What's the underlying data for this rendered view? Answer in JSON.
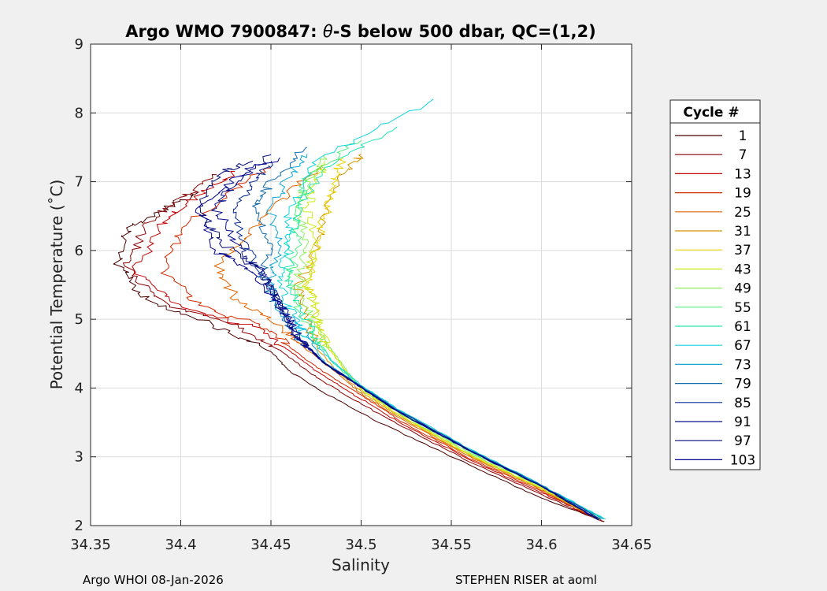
{
  "chart_data": {
    "type": "line",
    "title": "Argo WMO 7900847: θ-S below 500 dbar,  QC=(1,2)",
    "title_prefix": "Argo WMO 7900847: ",
    "title_theta": "θ",
    "title_suffix": "-S below 500 dbar,  QC=(1,2)",
    "xlabel": "Salinity",
    "ylabel": "Potential Temperature (˚C)",
    "xlim": [
      34.35,
      34.65
    ],
    "ylim": [
      2,
      9
    ],
    "xticks": [
      "34.35",
      "34.4",
      "34.45",
      "34.5",
      "34.55",
      "34.6",
      "34.65"
    ],
    "yticks": [
      "2",
      "3",
      "4",
      "5",
      "6",
      "7",
      "8",
      "9"
    ],
    "grid": true,
    "legend": {
      "title": "Cycle #",
      "placement": "right-outside",
      "entries": [
        "1",
        "7",
        "13",
        "19",
        "25",
        "31",
        "37",
        "43",
        "49",
        "55",
        "61",
        "67",
        "73",
        "79",
        "85",
        "91",
        "97",
        "103"
      ],
      "colors": [
        "#4a0000",
        "#8a0000",
        "#c40000",
        "#d42a00",
        "#e06400",
        "#d89400",
        "#e8d400",
        "#c8ec1a",
        "#8ef05a",
        "#52f080",
        "#22e6b0",
        "#10d4e0",
        "#10a8d8",
        "#106aac",
        "#0a2e96",
        "#06108a",
        "#020a78",
        "#000090"
      ]
    },
    "series": [
      {
        "cycle": 1,
        "color": "#4a0000",
        "points": [
          [
            34.635,
            2.06
          ],
          [
            34.6,
            2.4
          ],
          [
            34.56,
            2.88
          ],
          [
            34.51,
            3.5
          ],
          [
            34.48,
            3.92
          ],
          [
            34.46,
            4.25
          ],
          [
            34.45,
            4.53
          ],
          [
            34.42,
            4.9
          ],
          [
            34.38,
            5.3
          ],
          [
            34.365,
            5.8
          ],
          [
            34.37,
            6.3
          ],
          [
            34.39,
            6.6
          ],
          [
            34.41,
            6.85
          ]
        ]
      },
      {
        "cycle": 7,
        "color": "#8a0000",
        "points": [
          [
            34.634,
            2.06
          ],
          [
            34.6,
            2.45
          ],
          [
            34.56,
            2.93
          ],
          [
            34.52,
            3.48
          ],
          [
            34.49,
            3.92
          ],
          [
            34.47,
            4.25
          ],
          [
            34.455,
            4.55
          ],
          [
            34.43,
            4.9
          ],
          [
            34.39,
            5.25
          ],
          [
            34.37,
            5.75
          ],
          [
            34.38,
            6.35
          ],
          [
            34.4,
            6.75
          ],
          [
            34.42,
            7.1
          ]
        ]
      },
      {
        "cycle": 13,
        "color": "#c40000",
        "points": [
          [
            34.633,
            2.07
          ],
          [
            34.6,
            2.48
          ],
          [
            34.56,
            2.96
          ],
          [
            34.52,
            3.52
          ],
          [
            34.495,
            3.92
          ],
          [
            34.475,
            4.25
          ],
          [
            34.46,
            4.55
          ],
          [
            34.44,
            4.88
          ],
          [
            34.4,
            5.2
          ],
          [
            34.375,
            5.7
          ],
          [
            34.39,
            6.4
          ],
          [
            34.41,
            6.8
          ],
          [
            34.43,
            7.15
          ]
        ]
      },
      {
        "cycle": 19,
        "color": "#d42a00",
        "points": [
          [
            34.633,
            2.07
          ],
          [
            34.6,
            2.5
          ],
          [
            34.56,
            2.98
          ],
          [
            34.52,
            3.55
          ],
          [
            34.5,
            3.9
          ],
          [
            34.48,
            4.22
          ],
          [
            34.465,
            4.5
          ],
          [
            34.45,
            4.85
          ],
          [
            34.41,
            5.2
          ],
          [
            34.39,
            5.7
          ],
          [
            34.4,
            6.3
          ],
          [
            34.43,
            6.9
          ],
          [
            34.45,
            7.2
          ]
        ]
      },
      {
        "cycle": 25,
        "color": "#e06400",
        "points": [
          [
            34.632,
            2.08
          ],
          [
            34.6,
            2.52
          ],
          [
            34.56,
            3.0
          ],
          [
            34.52,
            3.58
          ],
          [
            34.5,
            3.92
          ],
          [
            34.485,
            4.25
          ],
          [
            34.47,
            4.55
          ],
          [
            34.455,
            4.9
          ],
          [
            34.43,
            5.3
          ],
          [
            34.42,
            5.8
          ],
          [
            34.44,
            6.3
          ],
          [
            34.46,
            6.85
          ],
          [
            34.48,
            7.25
          ]
        ]
      },
      {
        "cycle": 31,
        "color": "#d89400",
        "points": [
          [
            34.632,
            2.08
          ],
          [
            34.6,
            2.53
          ],
          [
            34.56,
            3.02
          ],
          [
            34.52,
            3.6
          ],
          [
            34.5,
            3.95
          ],
          [
            34.485,
            4.28
          ],
          [
            34.475,
            4.6
          ],
          [
            34.47,
            5.0
          ],
          [
            34.465,
            5.5
          ],
          [
            34.475,
            6.0
          ],
          [
            34.48,
            6.6
          ],
          [
            34.49,
            7.1
          ],
          [
            34.5,
            7.4
          ]
        ]
      },
      {
        "cycle": 37,
        "color": "#e8d400",
        "points": [
          [
            34.632,
            2.09
          ],
          [
            34.6,
            2.54
          ],
          [
            34.56,
            3.03
          ],
          [
            34.52,
            3.62
          ],
          [
            34.5,
            3.98
          ],
          [
            34.49,
            4.3
          ],
          [
            34.48,
            4.65
          ],
          [
            34.475,
            5.05
          ],
          [
            34.47,
            5.5
          ],
          [
            34.475,
            6.0
          ],
          [
            34.48,
            6.5
          ],
          [
            34.485,
            7.0
          ],
          [
            34.49,
            7.35
          ]
        ]
      },
      {
        "cycle": 43,
        "color": "#c8ec1a",
        "points": [
          [
            34.632,
            2.09
          ],
          [
            34.6,
            2.55
          ],
          [
            34.56,
            3.04
          ],
          [
            34.52,
            3.63
          ],
          [
            34.5,
            3.98
          ],
          [
            34.49,
            4.3
          ],
          [
            34.48,
            4.68
          ],
          [
            34.475,
            5.1
          ],
          [
            34.47,
            5.6
          ],
          [
            34.475,
            6.1
          ],
          [
            34.47,
            6.6
          ],
          [
            34.475,
            7.0
          ],
          [
            34.48,
            7.3
          ]
        ]
      },
      {
        "cycle": 49,
        "color": "#8ef05a",
        "points": [
          [
            34.633,
            2.09
          ],
          [
            34.6,
            2.56
          ],
          [
            34.56,
            3.06
          ],
          [
            34.52,
            3.65
          ],
          [
            34.5,
            4.0
          ],
          [
            34.49,
            4.32
          ],
          [
            34.48,
            4.7
          ],
          [
            34.47,
            5.15
          ],
          [
            34.465,
            5.6
          ],
          [
            34.47,
            6.1
          ],
          [
            34.465,
            6.6
          ],
          [
            34.47,
            7.0
          ],
          [
            34.48,
            7.4
          ]
        ]
      },
      {
        "cycle": 55,
        "color": "#52f080",
        "points": [
          [
            34.634,
            2.1
          ],
          [
            34.6,
            2.57
          ],
          [
            34.56,
            3.08
          ],
          [
            34.52,
            3.67
          ],
          [
            34.5,
            4.02
          ],
          [
            34.485,
            4.35
          ],
          [
            34.475,
            4.72
          ],
          [
            34.465,
            5.15
          ],
          [
            34.46,
            5.6
          ],
          [
            34.465,
            6.1
          ],
          [
            34.465,
            6.6
          ],
          [
            34.47,
            7.1
          ],
          [
            34.5,
            7.6
          ]
        ]
      },
      {
        "cycle": 61,
        "color": "#22e6b0",
        "points": [
          [
            34.635,
            2.1
          ],
          [
            34.6,
            2.58
          ],
          [
            34.56,
            3.1
          ],
          [
            34.52,
            3.68
          ],
          [
            34.5,
            4.03
          ],
          [
            34.485,
            4.36
          ],
          [
            34.475,
            4.73
          ],
          [
            34.465,
            5.15
          ],
          [
            34.46,
            5.6
          ],
          [
            34.46,
            6.1
          ],
          [
            34.465,
            6.6
          ],
          [
            34.48,
            7.2
          ],
          [
            34.52,
            7.8
          ]
        ]
      },
      {
        "cycle": 67,
        "color": "#10d4e0",
        "points": [
          [
            34.635,
            2.1
          ],
          [
            34.6,
            2.59
          ],
          [
            34.56,
            3.12
          ],
          [
            34.52,
            3.7
          ],
          [
            34.5,
            4.04
          ],
          [
            34.485,
            4.37
          ],
          [
            34.47,
            4.74
          ],
          [
            34.46,
            5.15
          ],
          [
            34.455,
            5.6
          ],
          [
            34.46,
            6.1
          ],
          [
            34.46,
            6.6
          ],
          [
            34.475,
            7.3
          ],
          [
            34.54,
            8.2
          ]
        ]
      },
      {
        "cycle": 73,
        "color": "#10a8d8",
        "points": [
          [
            34.634,
            2.1
          ],
          [
            34.6,
            2.59
          ],
          [
            34.56,
            3.11
          ],
          [
            34.52,
            3.69
          ],
          [
            34.5,
            4.03
          ],
          [
            34.48,
            4.37
          ],
          [
            34.47,
            4.74
          ],
          [
            34.455,
            5.15
          ],
          [
            34.45,
            5.6
          ],
          [
            34.455,
            6.1
          ],
          [
            34.45,
            6.6
          ],
          [
            34.46,
            7.1
          ],
          [
            34.47,
            7.4
          ]
        ]
      },
      {
        "cycle": 79,
        "color": "#106aac",
        "points": [
          [
            34.633,
            2.09
          ],
          [
            34.6,
            2.58
          ],
          [
            34.56,
            3.1
          ],
          [
            34.52,
            3.68
          ],
          [
            34.5,
            4.02
          ],
          [
            34.48,
            4.36
          ],
          [
            34.465,
            4.72
          ],
          [
            34.455,
            5.15
          ],
          [
            34.445,
            5.6
          ],
          [
            34.45,
            6.1
          ],
          [
            34.44,
            6.6
          ],
          [
            34.45,
            7.0
          ],
          [
            34.47,
            7.5
          ]
        ]
      },
      {
        "cycle": 85,
        "color": "#0a2e96",
        "points": [
          [
            34.633,
            2.09
          ],
          [
            34.6,
            2.58
          ],
          [
            34.56,
            3.1
          ],
          [
            34.52,
            3.68
          ],
          [
            34.5,
            4.02
          ],
          [
            34.48,
            4.36
          ],
          [
            34.465,
            4.74
          ],
          [
            34.455,
            5.2
          ],
          [
            34.445,
            5.65
          ],
          [
            34.435,
            6.1
          ],
          [
            34.43,
            6.6
          ],
          [
            34.44,
            7.0
          ],
          [
            34.45,
            7.3
          ]
        ]
      },
      {
        "cycle": 91,
        "color": "#06108a",
        "points": [
          [
            34.632,
            2.08
          ],
          [
            34.6,
            2.57
          ],
          [
            34.56,
            3.09
          ],
          [
            34.52,
            3.67
          ],
          [
            34.5,
            4.02
          ],
          [
            34.48,
            4.36
          ],
          [
            34.465,
            4.74
          ],
          [
            34.455,
            5.2
          ],
          [
            34.445,
            5.7
          ],
          [
            34.43,
            6.1
          ],
          [
            34.42,
            6.6
          ],
          [
            34.43,
            7.0
          ],
          [
            34.45,
            7.4
          ]
        ]
      },
      {
        "cycle": 97,
        "color": "#020a78",
        "points": [
          [
            34.632,
            2.08
          ],
          [
            34.6,
            2.57
          ],
          [
            34.56,
            3.09
          ],
          [
            34.52,
            3.66
          ],
          [
            34.5,
            4.01
          ],
          [
            34.48,
            4.35
          ],
          [
            34.465,
            4.73
          ],
          [
            34.455,
            5.2
          ],
          [
            34.445,
            5.7
          ],
          [
            34.425,
            6.05
          ],
          [
            34.41,
            6.6
          ],
          [
            34.42,
            7.1
          ],
          [
            34.44,
            7.3
          ]
        ]
      },
      {
        "cycle": 103,
        "color": "#000090",
        "points": [
          [
            34.632,
            2.08
          ],
          [
            34.6,
            2.57
          ],
          [
            34.56,
            3.09
          ],
          [
            34.52,
            3.66
          ],
          [
            34.5,
            4.01
          ],
          [
            34.48,
            4.35
          ],
          [
            34.465,
            4.72
          ],
          [
            34.455,
            5.2
          ],
          [
            34.44,
            5.7
          ],
          [
            34.42,
            6.0
          ],
          [
            34.41,
            6.6
          ],
          [
            34.43,
            7.05
          ],
          [
            34.455,
            7.35
          ]
        ]
      }
    ]
  },
  "footer": {
    "left": "Argo WHOI 08-Jan-2026",
    "right": "STEPHEN RISER at aoml"
  }
}
